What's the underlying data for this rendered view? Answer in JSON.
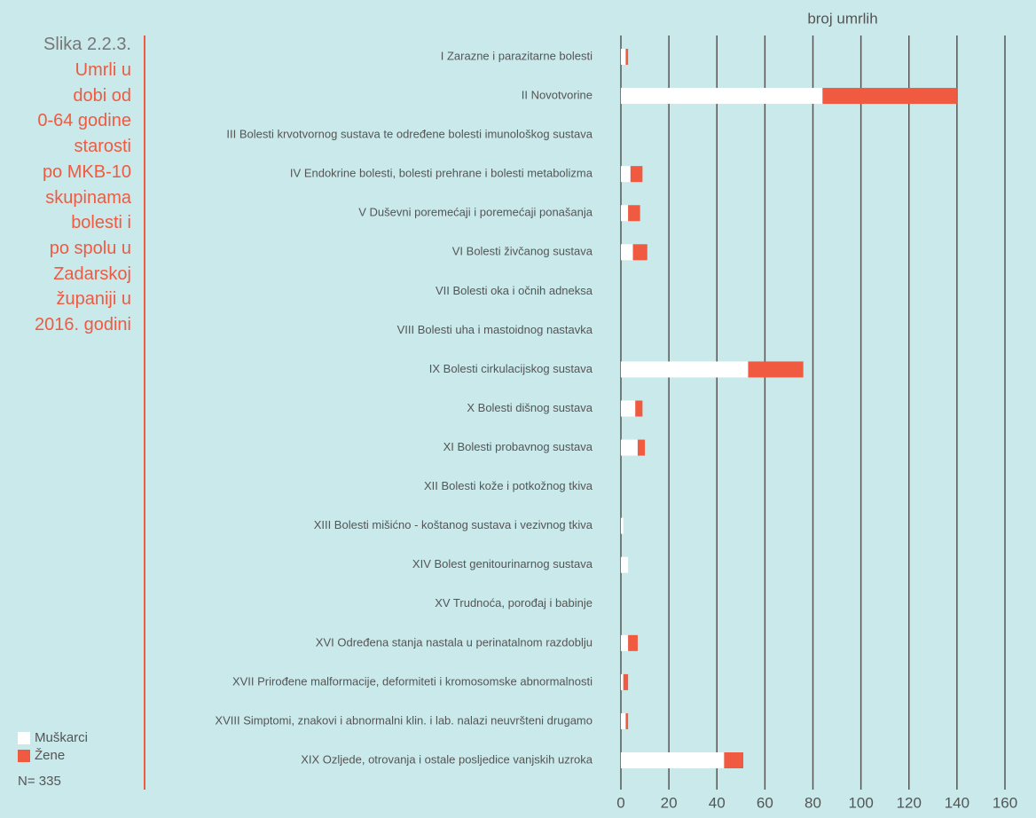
{
  "chart_data": {
    "type": "stacked_barh",
    "figure_label": "Slika 2.2.3.",
    "title_lines": [
      "Umrli u",
      "dobi od",
      "0-64 godine",
      "starosti",
      "po MKB-10",
      "skupinama",
      "bolesti i",
      "po spolu u",
      "Zadarskoj",
      "županiji u",
      "2016. godini"
    ],
    "x_label": "broj umrlih",
    "annotation": "N= 335",
    "categories": [
      "I Zarazne i parazitarne bolesti",
      "II Novotvorine",
      "III Bolesti krvotvornog sustava te određene bolesti imunološkog sustava",
      "IV Endokrine bolesti, bolesti prehrane i bolesti metabolizma",
      "V Duševni poremećaji i poremećaji ponašanja",
      "VI Bolesti živčanog sustava",
      "VII Bolesti oka i očnih adneksa",
      "VIII Bolesti uha i mastoidnog nastavka",
      "IX Bolesti cirkulacijskog sustava",
      "X Bolesti dišnog sustava",
      "XI Bolesti probavnog sustava",
      "XII Bolesti kože i potkožnog tkiva",
      "XIII Bolesti mišićno - koštanog sustava i vezivnog tkiva",
      "XIV Bolest genitourinarnog sustava",
      "XV Trudnoća, porođaj i babinje",
      "XVI Određena stanja nastala u perinatalnom razdoblju",
      "XVII Prirođene malformacije, deformiteti i kromosomske abnormalnosti",
      "XVIII Simptomi, znakovi i abnormalni klin. i lab. nalazi neuvršteni drugamo",
      "XIX Ozljede, otrovanja i ostale posljedice vanjskih uzroka"
    ],
    "series": [
      {
        "name": "Muškarci",
        "color": "#ffffff",
        "values": [
          2,
          84,
          0,
          4,
          3,
          5,
          0,
          0,
          53,
          6,
          7,
          0,
          1,
          3,
          0,
          3,
          1,
          2,
          43
        ]
      },
      {
        "name": "Žene",
        "color": "#f05a40",
        "values": [
          1,
          56,
          0,
          5,
          5,
          6,
          0,
          0,
          23,
          3,
          3,
          0,
          0,
          0,
          0,
          4,
          2,
          1,
          8
        ]
      }
    ],
    "xlim": [
      0,
      160
    ],
    "xticks": [
      0,
      20,
      40,
      60,
      80,
      100,
      120,
      140,
      160
    ],
    "grid": true
  }
}
